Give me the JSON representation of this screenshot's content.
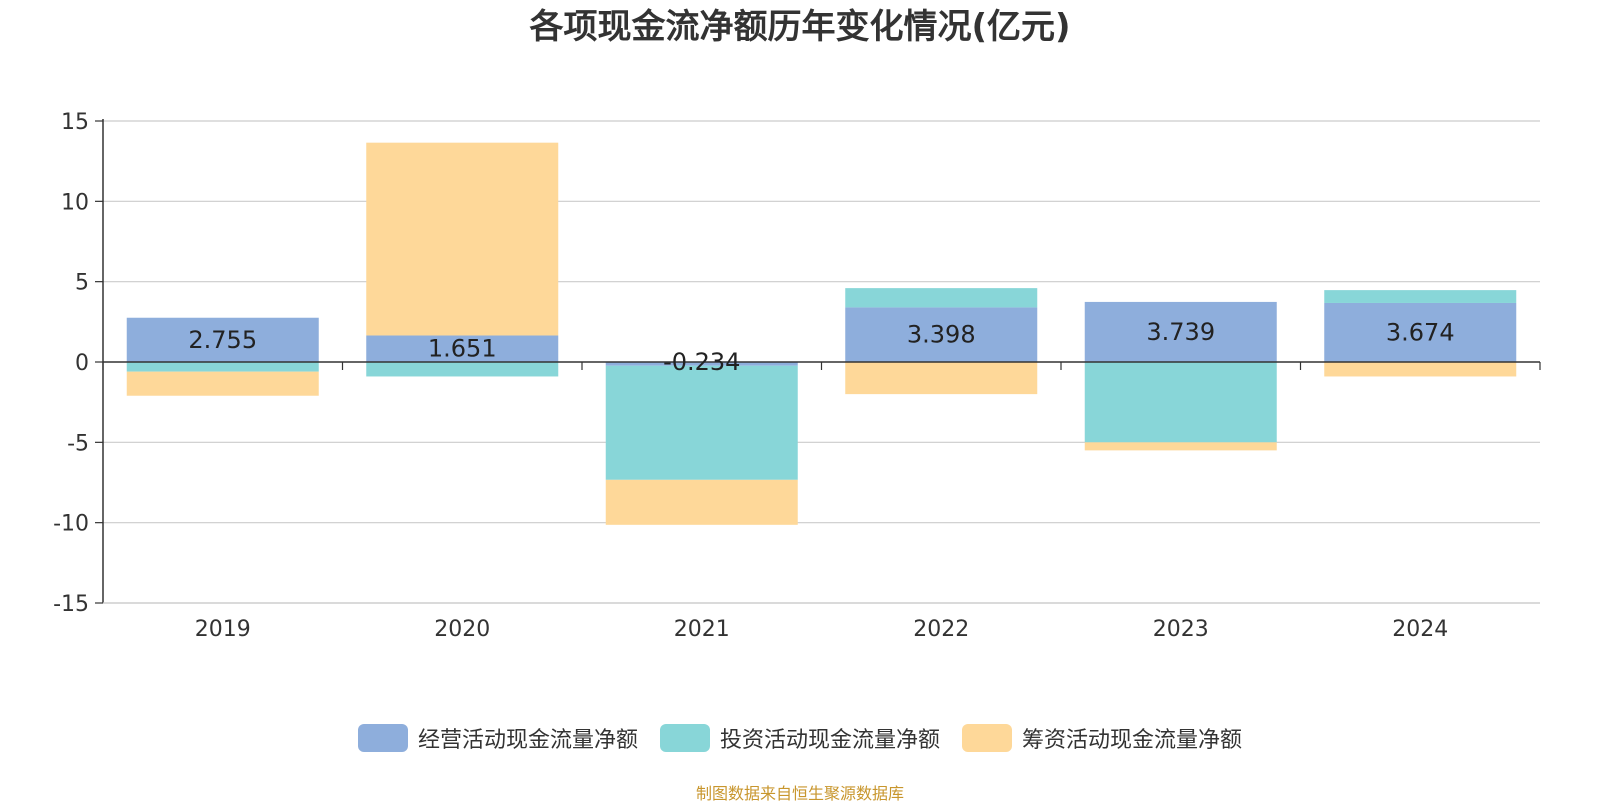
{
  "chart_data": {
    "type": "bar",
    "stacked": true,
    "title": "各项现金流净额历年变化情况(亿元)",
    "categories": [
      "2019",
      "2020",
      "2021",
      "2022",
      "2023",
      "2024"
    ],
    "series": [
      {
        "name": "经营活动现金流量净额",
        "color": "#8eaedc",
        "values": [
          2.755,
          1.651,
          -0.234,
          3.398,
          3.739,
          3.674
        ]
      },
      {
        "name": "投资活动现金流量净额",
        "color": "#88d6d8",
        "values": [
          -0.6,
          -0.9,
          -7.1,
          1.2,
          -5.0,
          0.8
        ]
      },
      {
        "name": "筹资活动现金流量净额",
        "color": "#fed899",
        "values": [
          -1.5,
          12.0,
          -2.8,
          -2.0,
          -0.5,
          -0.9
        ]
      }
    ],
    "data_labels": [
      "2.755",
      "1.651",
      "-0.234",
      "3.398",
      "3.739",
      "3.674"
    ],
    "y_ticks": [
      "15",
      "10",
      "5",
      "0",
      "-5",
      "-10",
      "-15"
    ],
    "ylim": [
      -15,
      15
    ],
    "grid": true,
    "legend_position": "bottom"
  },
  "source_note": "制图数据来自恒生聚源数据库"
}
